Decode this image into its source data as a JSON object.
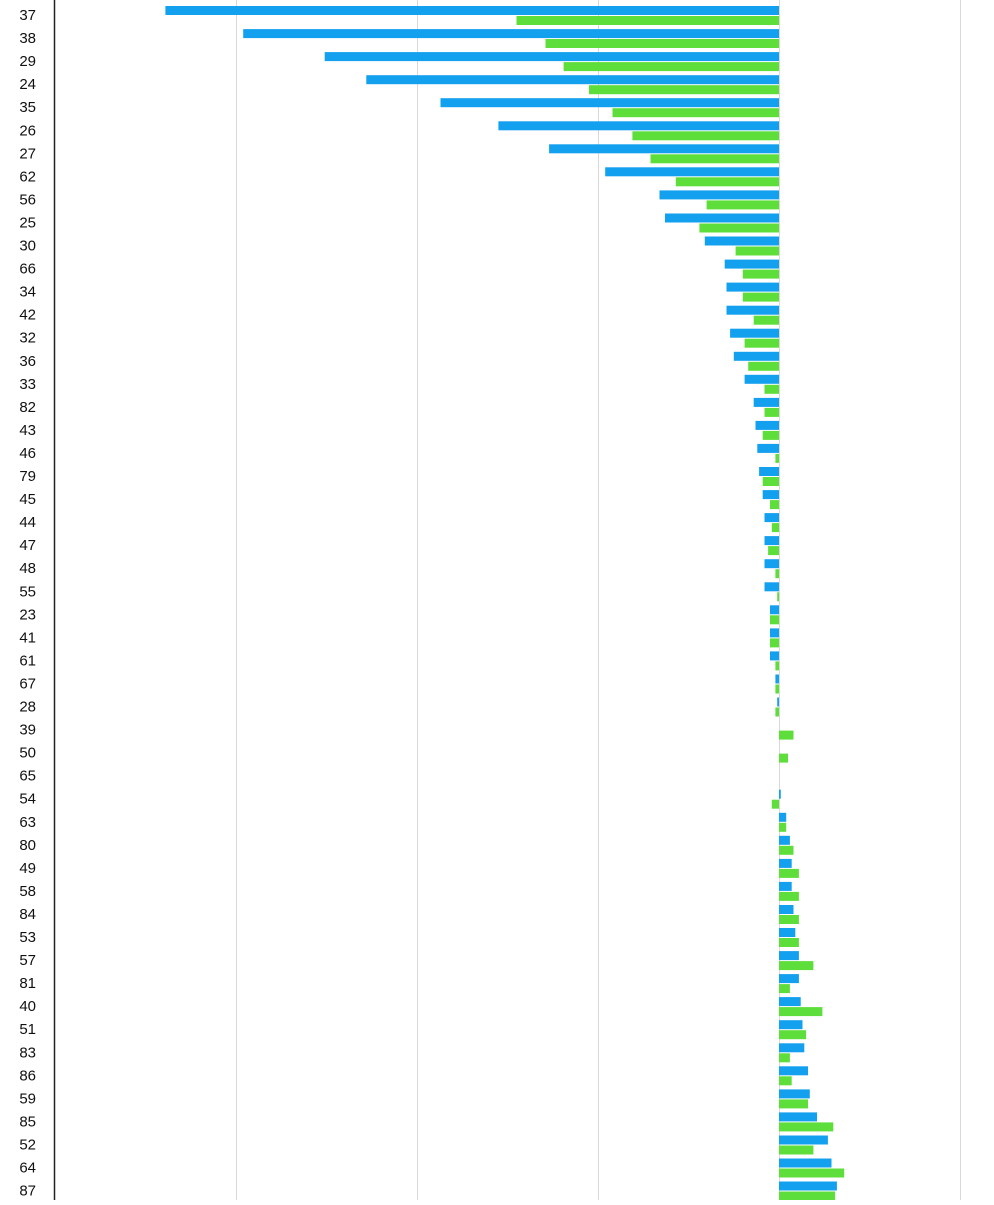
{
  "chart_data": {
    "type": "bar",
    "orientation": "horizontal",
    "grid": true,
    "legend": "none",
    "xlim": [
      -340,
      100
    ],
    "gridlines_x": [
      -300,
      -200,
      -100,
      0,
      100
    ],
    "categories": [
      "37",
      "38",
      "29",
      "24",
      "35",
      "26",
      "27",
      "62",
      "56",
      "25",
      "30",
      "66",
      "34",
      "42",
      "32",
      "36",
      "33",
      "82",
      "43",
      "46",
      "79",
      "45",
      "44",
      "47",
      "48",
      "55",
      "23",
      "41",
      "61",
      "67",
      "28",
      "39",
      "50",
      "65",
      "54",
      "63",
      "80",
      "49",
      "58",
      "84",
      "53",
      "57",
      "81",
      "40",
      "51",
      "83",
      "86",
      "59",
      "85",
      "52",
      "64",
      "87"
    ],
    "series": [
      {
        "color": "#13a0ee",
        "values": [
          -339,
          -296,
          -251,
          -228,
          -187,
          -155,
          -127,
          -96,
          -66,
          -63,
          -41,
          -30,
          -29,
          -29,
          -27,
          -25,
          -19,
          -14,
          -13,
          -12,
          -11,
          -9,
          -8,
          -8,
          -8,
          -8,
          -5,
          -5,
          -5,
          -2,
          -1,
          0,
          0,
          0,
          1,
          4,
          6,
          7,
          7,
          8,
          9,
          11,
          11,
          12,
          13,
          14,
          16,
          17,
          21,
          27,
          29,
          32
        ]
      },
      {
        "color": "#5ede3b",
        "values": [
          -145,
          -129,
          -119,
          -105,
          -92,
          -81,
          -71,
          -57,
          -40,
          -44,
          -24,
          -20,
          -20,
          -14,
          -19,
          -17,
          -8,
          -8,
          -9,
          -2,
          -9,
          -5,
          -4,
          -6,
          -2,
          -1,
          -5,
          -5,
          -2,
          -2,
          -2,
          8,
          5,
          0,
          -4,
          4,
          8,
          11,
          11,
          11,
          11,
          19,
          6,
          24,
          15,
          6,
          7,
          16,
          30,
          19,
          36,
          31
        ]
      }
    ]
  }
}
